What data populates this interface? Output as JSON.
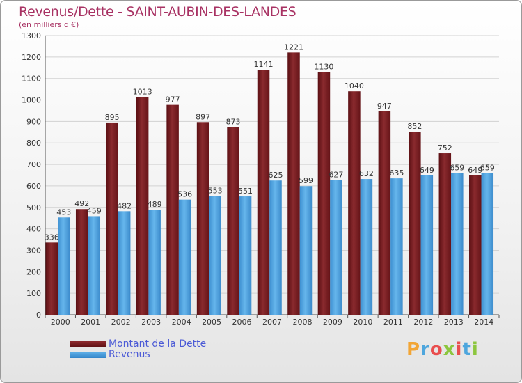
{
  "header": {
    "title": "Revenus/Dette - SAINT-AUBIN-DES-LANDES",
    "subtitle": "(en milliers d'€)"
  },
  "legend": {
    "debt_label": "Montant de la Dette",
    "revenue_label": "Revenus"
  },
  "branding": {
    "logo_text": "Proxiti",
    "logo_colors": [
      "#f2a535",
      "#4ea6dd",
      "#e94e4e",
      "#8cc63e"
    ]
  },
  "colors": {
    "debt": "#7a1c20",
    "revenue": "#4aa3e4",
    "title": "#a83263",
    "legend_text": "#4a59d6"
  },
  "chart_data": {
    "type": "bar",
    "title": "Revenus/Dette - SAINT-AUBIN-DES-LANDES",
    "subtitle": "(en milliers d'€)",
    "xlabel": "",
    "ylabel": "",
    "categories": [
      "2000",
      "2001",
      "2002",
      "2003",
      "2004",
      "2005",
      "2006",
      "2007",
      "2008",
      "2009",
      "2010",
      "2011",
      "2012",
      "2013",
      "2014"
    ],
    "series": [
      {
        "name": "Montant de la Dette",
        "values": [
          336,
          492,
          895,
          1013,
          977,
          897,
          873,
          1141,
          1221,
          1130,
          1040,
          947,
          852,
          752,
          649
        ]
      },
      {
        "name": "Revenus",
        "values": [
          453,
          459,
          482,
          489,
          536,
          553,
          551,
          625,
          599,
          627,
          632,
          635,
          649,
          659,
          659
        ]
      }
    ],
    "ylim": [
      0,
      1300
    ],
    "yticks": [
      0,
      100,
      200,
      300,
      400,
      500,
      600,
      700,
      800,
      900,
      1000,
      1100,
      1200,
      1300
    ],
    "grid": true,
    "legend_position": "bottom-left"
  }
}
